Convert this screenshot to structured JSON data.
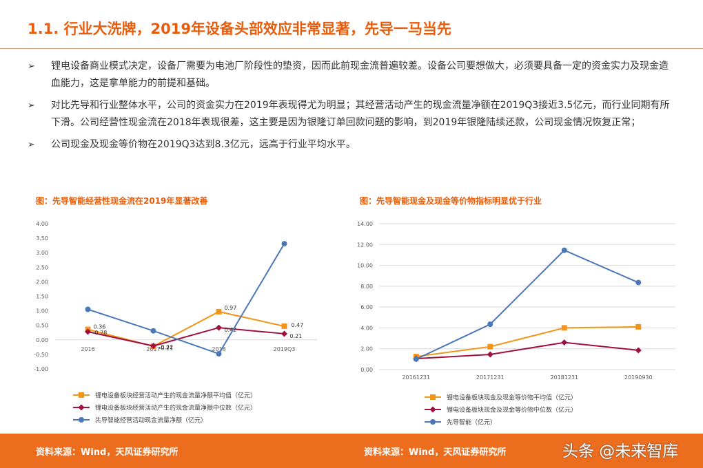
{
  "page": {
    "title": "1.1. 行业大洗牌，2019年设备头部效应非常显著，先导一马当先",
    "bullets": [
      "锂电设备商业模式决定，设备厂需要为电池厂阶段性的垫资，因而此前现金流普遍较差。设备公司要想做大，必须要具备一定的资金实力及现金造血能力，这是拿单能力的前提和基础。",
      "对比先导和行业整体水平，公司的资金实力在2019年表现得尤为明显；其经营活动产生的现金流量净额在2019Q3接近3.5亿元，而行业同期有所下滑。公司经营性现金流在2018年表现很差，这主要是因为银隆订单回款问题的影响，到2019年银隆陆续还款，公司现金情况恢复正常；",
      "公司现金及现金等价物在2019Q3达到8.3亿元，远高于行业平均水平。"
    ],
    "bullet_marker": "➢",
    "source_left": "资料来源：Wind，天风证券研究所",
    "source_right": "资料来源：Wind，天风证券研究所",
    "watermark": "头条 @未来智库"
  },
  "colors": {
    "accent": "#e85d0c",
    "footer": "#ec6d1e",
    "series_avg": "#f39519",
    "series_median": "#a0103f",
    "series_xiandao": "#4c78b8",
    "grid": "#d9d9d9",
    "axis_text": "#595959"
  },
  "chart_data": [
    {
      "type": "line",
      "title": "图：先导智能经营性现金流在2019年显著改善",
      "categories": [
        "2016",
        "2017",
        "2018",
        "2019Q3"
      ],
      "ylim": [
        -1.0,
        4.0
      ],
      "yticks": [
        "4.00",
        "3.50",
        "3.00",
        "2.50",
        "2.00",
        "1.50",
        "1.00",
        "0.50",
        "0.00",
        "-0.50",
        "-1.00"
      ],
      "grid": false,
      "legend_position": "bottom",
      "series": [
        {
          "name": "锂电设备板块经营活动产生的现金流量净额平均值（亿元）",
          "marker": "square",
          "color": "#f39519",
          "values": [
            0.36,
            -0.22,
            0.97,
            0.47
          ],
          "labels": [
            "0.36",
            "-0.22",
            "0.97",
            "0.47"
          ]
        },
        {
          "name": "锂电设备板块经营活动产生的现金流量净额中位数（亿元）",
          "marker": "diamond",
          "color": "#a0103f",
          "values": [
            0.28,
            -0.21,
            0.42,
            0.21
          ],
          "labels": [
            "0.28",
            "-0.21",
            "0.42",
            "0.21"
          ]
        },
        {
          "name": "先导智能经营活动现金流量净额（亿元）",
          "marker": "circle",
          "color": "#4c78b8",
          "values": [
            1.05,
            0.31,
            -0.48,
            3.31
          ],
          "labels": []
        }
      ]
    },
    {
      "type": "line",
      "title": "图：先导智能现金及现金等价物指标明显优于行业",
      "categories": [
        "20161231",
        "20171231",
        "20181231",
        "20190930"
      ],
      "ylim": [
        0,
        14
      ],
      "yticks": [
        "14.00",
        "12.00",
        "10.00",
        "8.00",
        "6.00",
        "4.00",
        "2.00",
        "0.00"
      ],
      "grid": true,
      "legend_position": "bottom",
      "series": [
        {
          "name": "锂电设备板块现金及现金等价物平均值（亿元）",
          "marker": "square",
          "color": "#f39519",
          "values": [
            1.25,
            2.2,
            4.0,
            4.1
          ],
          "labels": []
        },
        {
          "name": "锂电设备板块现金及现金等价物中位数（亿元）",
          "marker": "diamond",
          "color": "#a0103f",
          "values": [
            1.05,
            1.45,
            2.6,
            1.85
          ],
          "labels": []
        },
        {
          "name": "先导智能（亿元）",
          "marker": "circle",
          "color": "#4c78b8",
          "values": [
            1.0,
            4.35,
            11.45,
            8.35
          ],
          "labels": []
        }
      ]
    }
  ]
}
